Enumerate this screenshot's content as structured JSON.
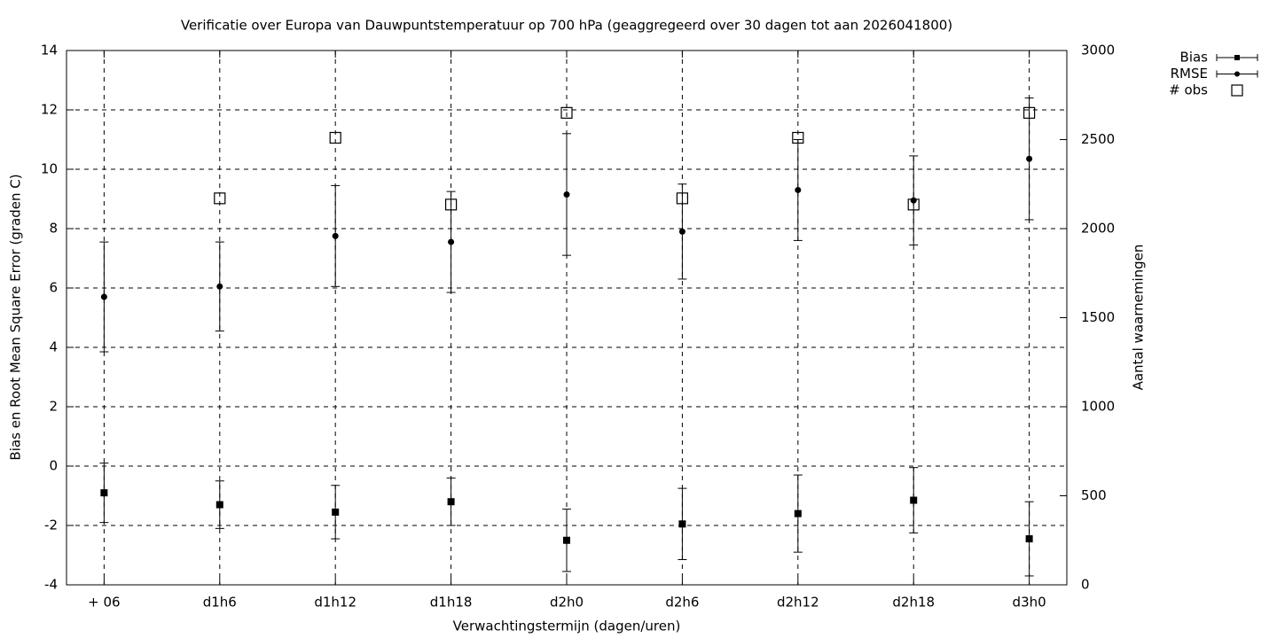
{
  "chart_data": {
    "type": "errorbar",
    "title": "Verificatie over Europa van Dauwpuntstemperatuur op 700 hPa (geaggregeerd over 30 dagen tot aan 2026041800)",
    "x_label": "Verwachtingstermijn (dagen/uren)",
    "y_label": "Bias en Root Mean Square Error (graden C)",
    "y2_label": "Aantal waarnemingen",
    "categories": [
      "+ 06",
      "d1h6",
      "d1h12",
      "d1h18",
      "d2h0",
      "d2h6",
      "d2h12",
      "d2h18",
      "d3h0"
    ],
    "ylim": [
      -4,
      14
    ],
    "yticks": [
      -4,
      -2,
      0,
      2,
      4,
      6,
      8,
      10,
      12,
      14
    ],
    "y2lim": [
      0,
      3000
    ],
    "y2ticks": [
      0,
      500,
      1000,
      1500,
      2000,
      2500,
      3000
    ],
    "grid": true,
    "legend": "right",
    "series": [
      {
        "name": "Bias",
        "color": "#000000",
        "marker": "square",
        "values": [
          -0.9,
          -1.3,
          -1.55,
          -1.2,
          -2.5,
          -1.95,
          -1.6,
          -1.15,
          -2.45
        ],
        "errors": [
          1.0,
          0.8,
          0.9,
          0.8,
          1.05,
          1.2,
          1.3,
          1.1,
          1.25
        ]
      },
      {
        "name": "RMSE",
        "color": "#000000",
        "marker": "circle",
        "values": [
          5.7,
          6.05,
          7.75,
          7.55,
          9.15,
          7.9,
          9.3,
          8.95,
          10.35
        ],
        "errors": [
          1.85,
          1.5,
          1.7,
          1.7,
          2.05,
          1.6,
          1.7,
          1.5,
          2.05
        ]
      },
      {
        "name": "# obs",
        "color": "#000000",
        "marker": "open-square",
        "axis": "y2",
        "values": [
          null,
          2170,
          2510,
          2135,
          2650,
          2170,
          2510,
          2135,
          2650
        ]
      }
    ]
  }
}
